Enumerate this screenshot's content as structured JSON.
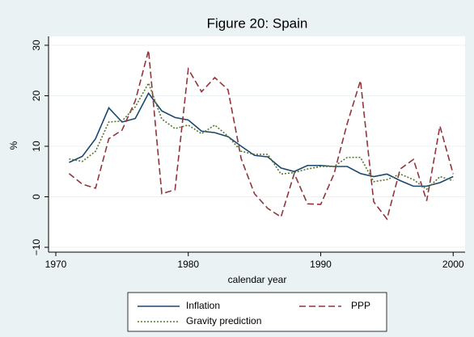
{
  "chart_data": {
    "type": "line",
    "title": "Figure 20: Spain",
    "x_label": "calendar year",
    "y_label": "%",
    "x": [
      1971,
      1972,
      1973,
      1974,
      1975,
      1976,
      1977,
      1978,
      1979,
      1980,
      1981,
      1982,
      1983,
      1984,
      1985,
      1986,
      1987,
      1988,
      1989,
      1990,
      1991,
      1992,
      1993,
      1994,
      1995,
      1996,
      1997,
      1998,
      1999,
      2000
    ],
    "series": [
      {
        "name": "Inflation",
        "color": "#1a476f",
        "dash": "solid",
        "values": [
          6.8,
          8.0,
          11.5,
          17.6,
          14.8,
          15.5,
          20.5,
          17.0,
          15.7,
          15.2,
          13.0,
          12.7,
          11.9,
          10.0,
          8.2,
          7.9,
          5.7,
          5.0,
          6.2,
          6.2,
          6.0,
          6.0,
          4.6,
          4.0,
          4.5,
          3.2,
          2.1,
          2.1,
          2.8,
          4.0
        ]
      },
      {
        "name": "PPP",
        "color": "#90353b",
        "dash": "dashed",
        "values": [
          4.6,
          2.5,
          1.7,
          11.5,
          13.2,
          19.0,
          29.0,
          0.6,
          1.4,
          25.3,
          20.8,
          23.6,
          21.2,
          7.5,
          0.6,
          -2.3,
          -4.0,
          4.6,
          -1.4,
          -1.5,
          4.5,
          14.5,
          23.0,
          -1.0,
          -4.4,
          5.5,
          7.4,
          -0.8,
          14.0,
          4.5
        ]
      },
      {
        "name": "Gravity prediction",
        "color": "#55752f",
        "dash": "dotted",
        "values": [
          7.5,
          7.0,
          9.0,
          14.8,
          15.0,
          17.8,
          22.5,
          15.4,
          13.5,
          14.2,
          12.5,
          14.2,
          12.0,
          9.0,
          8.4,
          8.4,
          4.5,
          4.8,
          5.5,
          6.0,
          6.0,
          7.8,
          7.8,
          3.0,
          3.4,
          4.5,
          3.4,
          1.5,
          4.0,
          3.2
        ]
      }
    ],
    "xlim": [
      1969.45,
      2000.9
    ],
    "xticks": [
      1970,
      1980,
      1990,
      2000
    ],
    "ylim": [
      -10.96,
      31.76
    ],
    "yticks": [
      {
        "value": -10,
        "label": "−10"
      },
      0,
      10,
      20,
      30
    ],
    "grid": true,
    "legend": "bottom"
  }
}
